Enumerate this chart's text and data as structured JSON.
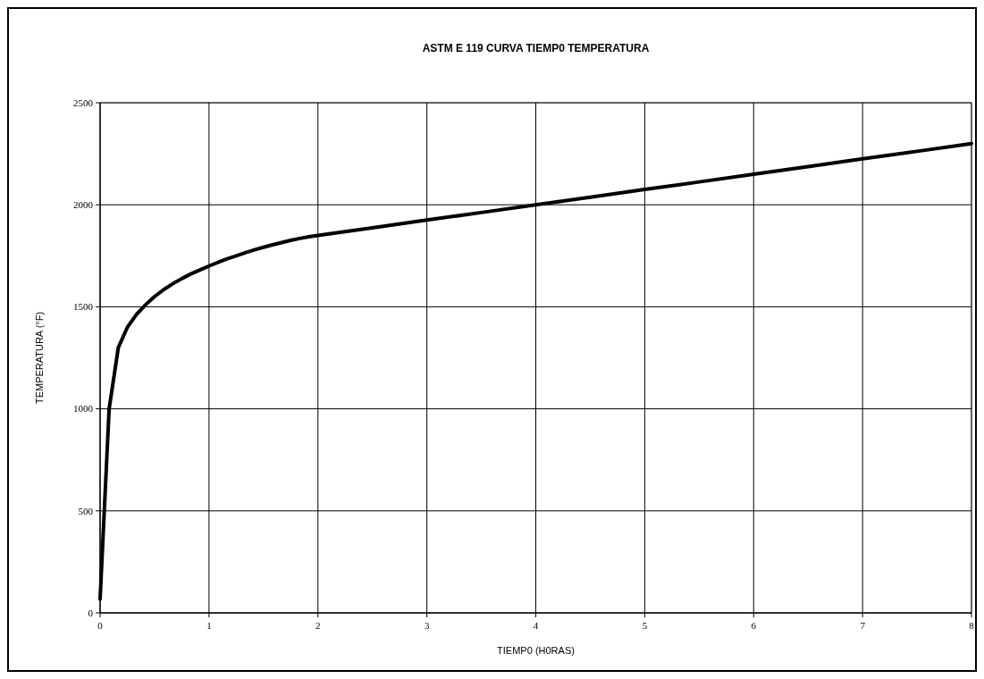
{
  "chart_data": {
    "type": "line",
    "title": "ASTM E 119 CURVA TIEMP0 TEMPERATURA",
    "xlabel": "TIEMP0 (H0RAS)",
    "ylabel": "TEMPERATURA (°F)",
    "xlim": [
      0,
      8
    ],
    "xticks": [
      0,
      1,
      2,
      3,
      4,
      5,
      6,
      7,
      8
    ],
    "ylim": [
      0,
      2500
    ],
    "yticks": [
      0,
      500,
      1000,
      1500,
      2000,
      2500
    ],
    "grid": true,
    "marker": "none",
    "line_style": "solid",
    "series": [
      {
        "color": "#000000",
        "x": [
          0,
          0.083,
          0.167,
          0.25,
          0.333,
          0.417,
          0.5,
          0.583,
          0.667,
          0.75,
          0.833,
          0.917,
          1,
          1.083,
          1.167,
          1.25,
          1.333,
          1.417,
          1.5,
          1.583,
          1.667,
          1.75,
          1.833,
          1.917,
          2,
          2.5,
          3,
          3.5,
          4,
          4.5,
          5,
          5.5,
          6,
          6.5,
          7,
          7.5,
          8
        ],
        "values": [
          68,
          1000,
          1300,
          1399,
          1462,
          1510,
          1550,
          1584,
          1613,
          1638,
          1661,
          1681,
          1700,
          1718,
          1735,
          1750,
          1765,
          1779,
          1792,
          1804,
          1815,
          1826,
          1835,
          1843,
          1850,
          1887,
          1925,
          1962,
          2000,
          2037,
          2075,
          2112,
          2150,
          2187,
          2225,
          2262,
          2300
        ]
      }
    ]
  }
}
